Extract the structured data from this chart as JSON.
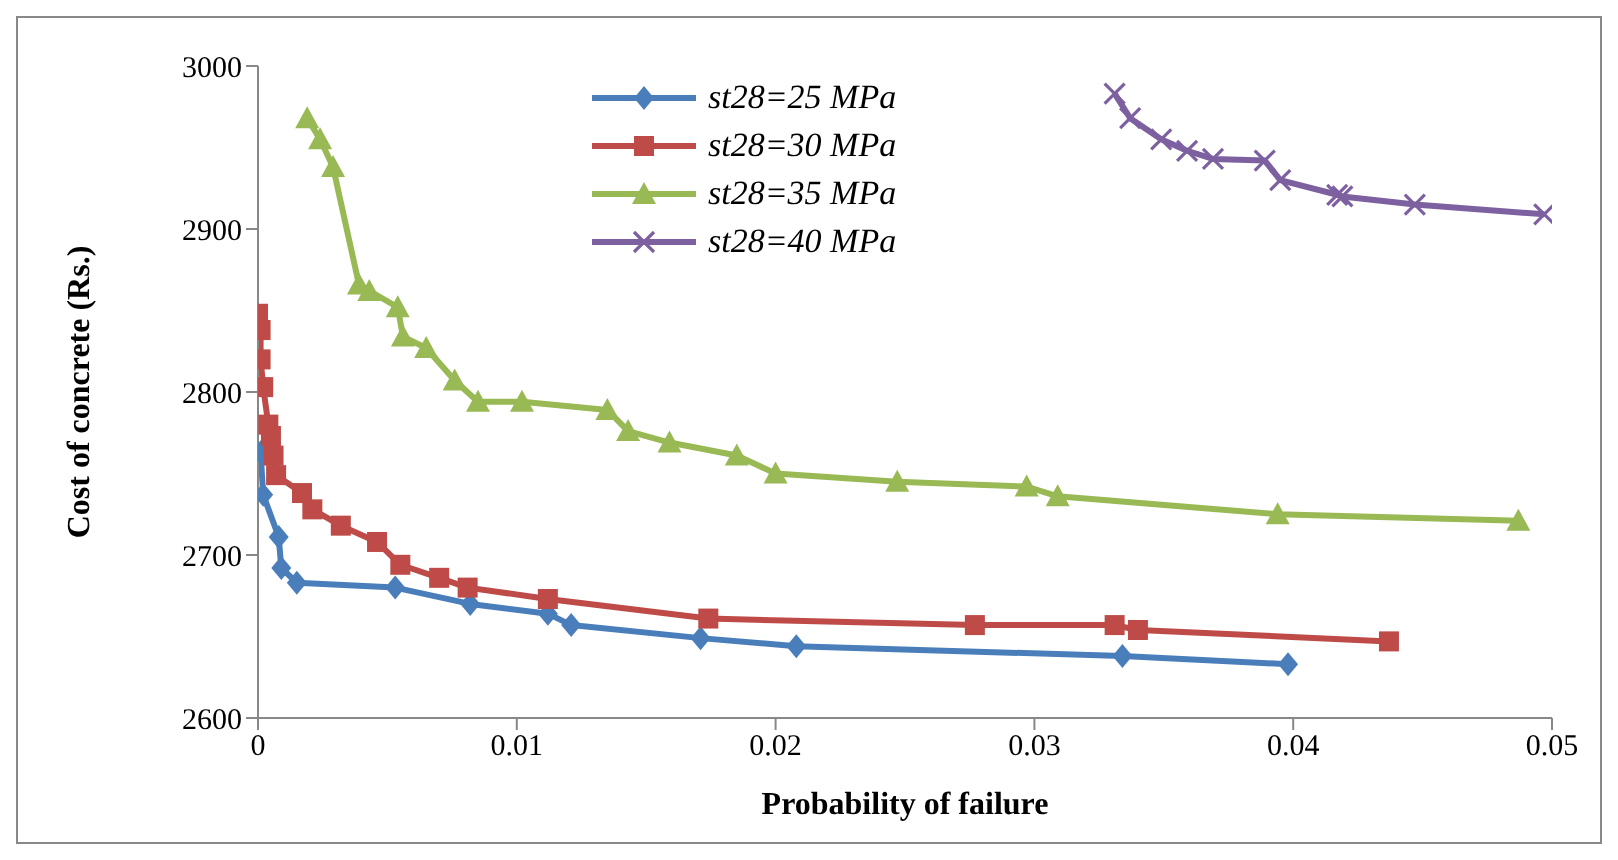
{
  "chart_data": {
    "type": "line",
    "xlabel": "Probability of failure",
    "ylabel": "Cost of concrete (Rs.)",
    "xlim": [
      0,
      0.05
    ],
    "xticks": [
      0,
      0.01,
      0.02,
      0.03,
      0.04,
      0.05
    ],
    "ylim": [
      2600,
      3000
    ],
    "yticks": [
      2600,
      2700,
      2800,
      2900,
      3000
    ],
    "grid": false,
    "legend": "top",
    "line_style": "solid",
    "series": [
      {
        "name": "st28=25 MPa",
        "color": "#4a7ebb",
        "marker": "diamond",
        "x": [
          0.0001,
          0.0002,
          0.0008,
          0.0009,
          0.0015,
          0.0053,
          0.0082,
          0.0112,
          0.0121,
          0.0171,
          0.0208,
          0.0334,
          0.0398
        ],
        "values": [
          2763,
          2737,
          2711,
          2692,
          2683,
          2680,
          2670,
          2664,
          2657,
          2649,
          2644,
          2638,
          2633
        ]
      },
      {
        "name": "st28=30 MPa",
        "color": "#be4b48",
        "marker": "square",
        "x": [
          0,
          0.0001,
          0.0001,
          0.0002,
          0.0004,
          0.0005,
          0.0006,
          0.0007,
          0.0017,
          0.0021,
          0.0032,
          0.0046,
          0.0055,
          0.007,
          0.0081,
          0.0112,
          0.0174,
          0.0277,
          0.0331,
          0.034,
          0.0437
        ],
        "values": [
          2848,
          2838,
          2820,
          2803,
          2780,
          2773,
          2761,
          2749,
          2738,
          2728,
          2718,
          2708,
          2694,
          2686,
          2680,
          2673,
          2661,
          2657,
          2657,
          2654,
          2647
        ]
      },
      {
        "name": "st28=35 MPa",
        "color": "#98b954",
        "marker": "triangle",
        "x": [
          0.0019,
          0.0024,
          0.0029,
          0.0039,
          0.0043,
          0.0054,
          0.0056,
          0.0065,
          0.0076,
          0.0085,
          0.0102,
          0.0135,
          0.0143,
          0.0159,
          0.0185,
          0.02,
          0.0247,
          0.0297,
          0.0309,
          0.0394,
          0.0487
        ],
        "values": [
          2968,
          2955,
          2938,
          2866,
          2862,
          2852,
          2834,
          2827,
          2807,
          2794,
          2794,
          2789,
          2776,
          2769,
          2761,
          2750,
          2745,
          2742,
          2736,
          2725,
          2721
        ]
      },
      {
        "name": "st28=40 MPa",
        "color": "#7d60a0",
        "marker": "cross",
        "x": [
          0.0331,
          0.0337,
          0.0349,
          0.0359,
          0.0369,
          0.0389,
          0.0395,
          0.0417,
          0.0419,
          0.0447,
          0.0497
        ],
        "values": [
          2983,
          2968,
          2955,
          2948,
          2943,
          2942,
          2930,
          2921,
          2920,
          2915,
          2909
        ]
      }
    ]
  }
}
